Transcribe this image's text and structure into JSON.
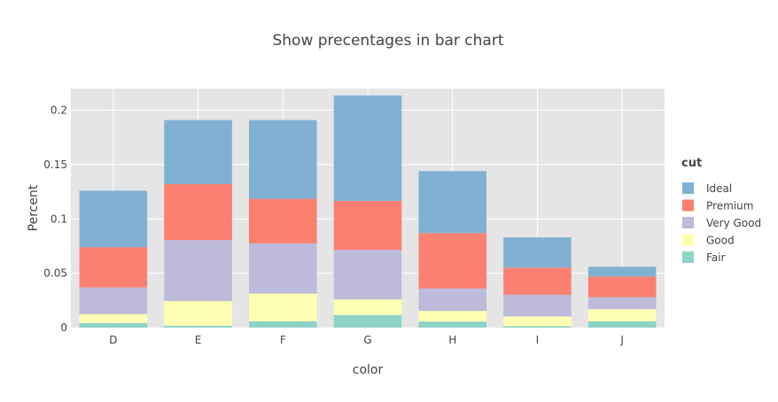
{
  "chart_data": {
    "type": "bar",
    "stacked": true,
    "title": "Show precentages in bar chart",
    "xlabel": "color",
    "ylabel": "Percent",
    "ylim": [
      0,
      0.22
    ],
    "yticks": [
      0,
      0.05,
      0.1,
      0.15,
      0.2
    ],
    "ytick_labels": [
      "0",
      "0.05",
      "0.1",
      "0.15",
      "0.2"
    ],
    "grid": true,
    "categories": [
      "D",
      "E",
      "F",
      "G",
      "H",
      "I",
      "J"
    ],
    "legend": {
      "title": "cut",
      "placement": "right"
    },
    "series": [
      {
        "name": "Fair",
        "color": "#8dd3c7",
        "values": [
          0.0042,
          0.0017,
          0.0058,
          0.0116,
          0.0056,
          0.0013,
          0.0058
        ]
      },
      {
        "name": "Good",
        "color": "#ffffb3",
        "values": [
          0.0083,
          0.0228,
          0.0255,
          0.0144,
          0.0098,
          0.0089,
          0.0112
        ]
      },
      {
        "name": "Very Good",
        "color": "#bebada",
        "values": [
          0.0245,
          0.056,
          0.0462,
          0.0456,
          0.0206,
          0.02,
          0.011
        ]
      },
      {
        "name": "Premium",
        "color": "#fb8072",
        "values": [
          0.037,
          0.0515,
          0.041,
          0.045,
          0.051,
          0.025,
          0.019
        ]
      },
      {
        "name": "Ideal",
        "color": "#80b1d3",
        "values": [
          0.052,
          0.059,
          0.0725,
          0.097,
          0.057,
          0.0278,
          0.009
        ]
      }
    ]
  }
}
